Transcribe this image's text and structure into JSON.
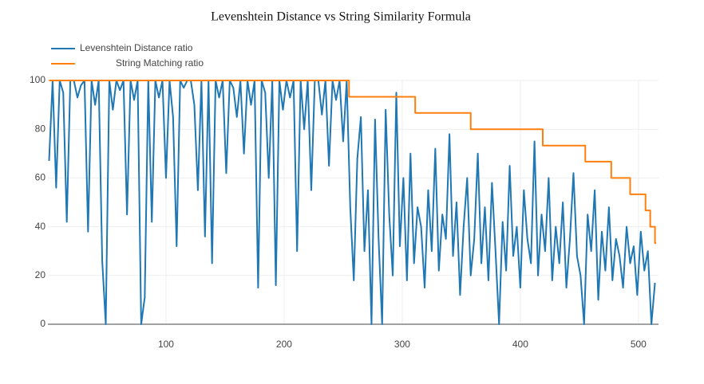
{
  "chart_data": {
    "type": "line",
    "title": "Levenshtein Distance vs String Similarity Formula",
    "xlim": [
      0,
      517
    ],
    "xticks": [
      100,
      200,
      300,
      400,
      500
    ],
    "ylim": [
      0,
      100
    ],
    "yticks": [
      0,
      20,
      40,
      60,
      80,
      100
    ],
    "grid": true,
    "series": [
      {
        "name": "Levenshtein Distance ratio",
        "color": "#1f77b4",
        "x": [
          1,
          4,
          7,
          10,
          13,
          16,
          19,
          22,
          25,
          28,
          31,
          34,
          37,
          40,
          43,
          46,
          49,
          52,
          55,
          58,
          61,
          64,
          67,
          70,
          73,
          76,
          79,
          82,
          85,
          88,
          91,
          94,
          97,
          100,
          103,
          106,
          109,
          112,
          115,
          118,
          121,
          124,
          127,
          130,
          133,
          136,
          139,
          142,
          145,
          148,
          151,
          154,
          157,
          160,
          163,
          166,
          169,
          172,
          175,
          178,
          181,
          184,
          187,
          190,
          193,
          196,
          199,
          202,
          205,
          208,
          211,
          214,
          217,
          220,
          223,
          226,
          229,
          232,
          235,
          238,
          241,
          244,
          247,
          250,
          253,
          256,
          259,
          262,
          265,
          268,
          271,
          274,
          277,
          280,
          283,
          286,
          289,
          292,
          295,
          298,
          301,
          304,
          307,
          310,
          313,
          316,
          319,
          322,
          325,
          328,
          331,
          334,
          337,
          340,
          343,
          346,
          349,
          352,
          355,
          358,
          361,
          364,
          367,
          370,
          373,
          376,
          379,
          382,
          385,
          388,
          391,
          394,
          397,
          400,
          403,
          406,
          409,
          412,
          415,
          418,
          421,
          424,
          427,
          430,
          433,
          436,
          439,
          442,
          445,
          448,
          451,
          454,
          457,
          460,
          463,
          466,
          469,
          472,
          475,
          478,
          481,
          484,
          487,
          490,
          493,
          496,
          499,
          502,
          505,
          508,
          511,
          514
        ],
        "values": [
          67,
          100,
          56,
          100,
          95,
          42,
          100,
          100,
          93,
          98,
          100,
          38,
          100,
          90,
          100,
          26,
          0,
          100,
          88,
          100,
          96,
          100,
          45,
          100,
          92,
          100,
          0,
          11,
          100,
          42,
          100,
          93,
          100,
          60,
          100,
          85,
          32,
          100,
          97,
          100,
          100,
          90,
          55,
          100,
          36,
          100,
          25,
          100,
          93,
          100,
          62,
          100,
          97,
          85,
          100,
          70,
          100,
          90,
          100,
          15,
          100,
          95,
          60,
          100,
          16,
          100,
          88,
          100,
          93,
          100,
          30,
          100,
          80,
          100,
          55,
          100,
          100,
          86,
          100,
          65,
          100,
          92,
          100,
          75,
          100,
          48,
          18,
          68,
          85,
          30,
          55,
          0,
          84,
          35,
          0,
          88,
          45,
          20,
          95,
          32,
          60,
          18,
          70,
          25,
          48,
          40,
          15,
          55,
          30,
          72,
          22,
          45,
          35,
          78,
          28,
          50,
          12,
          40,
          60,
          20,
          35,
          70,
          25,
          48,
          18,
          58,
          30,
          0,
          42,
          22,
          65,
          28,
          40,
          15,
          55,
          35,
          25,
          75,
          20,
          45,
          30,
          60,
          18,
          40,
          25,
          50,
          15,
          35,
          62,
          28,
          20,
          0,
          45,
          30,
          55,
          10,
          38,
          22,
          48,
          18,
          35,
          28,
          15,
          40,
          25,
          32,
          12,
          38,
          22,
          30,
          0,
          17
        ]
      },
      {
        "name": "String Matching ratio",
        "color": "#ff7f0e",
        "x": [
          1,
          255,
          255,
          311,
          311,
          358,
          358,
          419,
          419,
          455,
          455,
          477,
          477,
          493,
          493,
          506,
          506,
          510,
          510,
          514,
          514,
          515
        ],
        "values": [
          100,
          100,
          93.3,
          93.3,
          86.7,
          86.7,
          80,
          80,
          73.3,
          73.3,
          66.7,
          66.7,
          60,
          60,
          53.3,
          53.3,
          46.7,
          46.7,
          40,
          40,
          33.3,
          33.3
        ]
      }
    ]
  }
}
